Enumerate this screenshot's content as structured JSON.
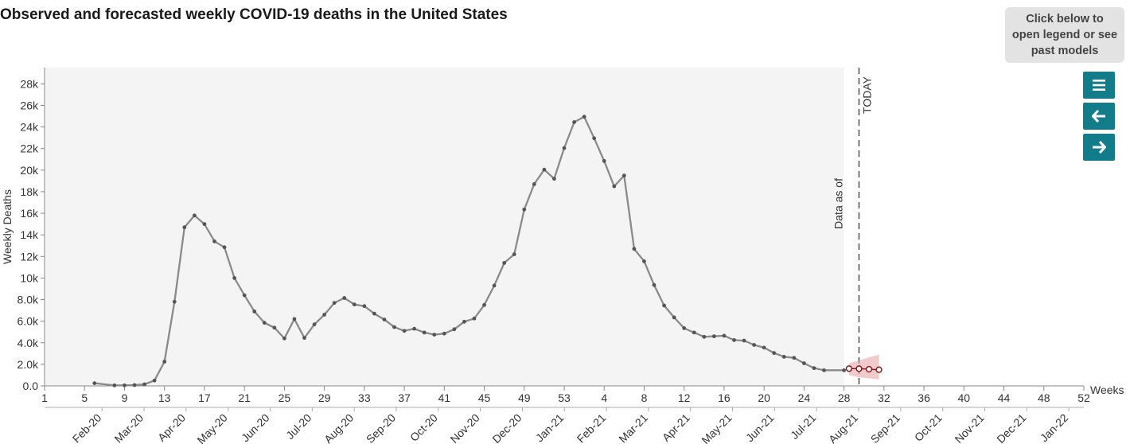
{
  "header": {
    "title": "Observed and forecasted weekly COVID-19 deaths in the United States",
    "legend_button_label": "Click below to open legend or see past models"
  },
  "toolbar": {
    "buttons": [
      {
        "name": "menu",
        "icon": "menu-icon"
      },
      {
        "name": "back",
        "icon": "arrow-left-icon"
      },
      {
        "name": "forward",
        "icon": "arrow-right-icon"
      }
    ],
    "accent_color": "#137c8b"
  },
  "chart_data": {
    "type": "line",
    "title": "Observed and forecasted weekly COVID-19 deaths in the United States",
    "xlabel": "Weeks",
    "ylabel": "Weekly Deaths",
    "ylim": [
      0,
      29500
    ],
    "y_ticks": [
      0,
      2000,
      4000,
      6000,
      8000,
      10000,
      12000,
      14000,
      16000,
      18000,
      20000,
      22000,
      24000,
      26000,
      28000
    ],
    "y_tick_labels": [
      "0.0",
      "2.0k",
      "4.0k",
      "6.0k",
      "8.0k",
      "10k",
      "12k",
      "14k",
      "16k",
      "18k",
      "20k",
      "22k",
      "24k",
      "26k",
      "28k"
    ],
    "x_week_labels": [
      "1",
      "5",
      "9",
      "13",
      "17",
      "21",
      "25",
      "29",
      "33",
      "37",
      "41",
      "45",
      "49",
      "53",
      "4",
      "8",
      "12",
      "16",
      "20",
      "24",
      "28",
      "32",
      "36",
      "40",
      "44",
      "48",
      "52"
    ],
    "x_month_labels": [
      "Feb-20",
      "Mar-20",
      "Apr-20",
      "May-20",
      "Jun-20",
      "Jul-20",
      "Aug-20",
      "Sep-20",
      "Oct-20",
      "Nov-20",
      "Dec-20",
      "Jan-21",
      "Feb-21",
      "Mar-21",
      "Apr-21",
      "May-21",
      "Jun-21",
      "Jul-21",
      "Aug-21",
      "Sep-21",
      "Oct-21",
      "Nov-21",
      "Dec-21",
      "Jan-22"
    ],
    "observed_region_end_week": 81,
    "today_week": 82.5,
    "today_label": "TODAY",
    "data_as_of_label": "Data as of",
    "grid": false,
    "series": [
      {
        "role": "observed",
        "color": "#8a8a8a",
        "x": [
          6,
          8,
          9,
          10,
          11,
          12,
          13,
          14,
          15,
          16,
          17,
          18,
          19,
          20,
          21,
          22,
          23,
          24,
          25,
          26,
          27,
          28,
          29,
          30,
          31,
          32,
          33,
          34,
          35,
          36,
          37,
          38,
          39,
          40,
          41,
          42,
          43,
          44,
          45,
          46,
          47,
          48,
          49,
          50,
          51,
          52,
          53,
          54,
          55,
          56,
          57,
          58,
          59,
          60,
          61,
          62,
          63,
          64,
          65,
          66,
          67,
          68,
          69,
          70,
          71,
          72,
          73,
          74,
          75,
          76,
          77,
          78,
          79,
          81
        ],
        "values": [
          250,
          50,
          50,
          80,
          150,
          500,
          2250,
          7800,
          14700,
          15800,
          15000,
          13400,
          12850,
          10000,
          8400,
          6900,
          5850,
          5400,
          4400,
          6200,
          4450,
          5700,
          6600,
          7700,
          8150,
          7550,
          7400,
          6700,
          6150,
          5450,
          5100,
          5300,
          4950,
          4750,
          4850,
          5250,
          5950,
          6250,
          7500,
          9300,
          11400,
          12200,
          16350,
          18700,
          20050,
          19200,
          22050,
          24450,
          24950,
          22950,
          20850,
          18500,
          19500,
          12700,
          11550,
          9350,
          7450,
          6350,
          5350,
          4950,
          4550,
          4600,
          4650,
          4250,
          4200,
          3800,
          3550,
          3050,
          2700,
          2600,
          2100,
          1650,
          1450,
          1450
        ]
      },
      {
        "role": "forecast",
        "color": "#8b1a1a",
        "x": [
          81.5,
          82.5,
          83.5,
          84.5
        ],
        "values": [
          1600,
          1600,
          1550,
          1500
        ],
        "interval_low": [
          1000,
          800,
          700,
          600
        ],
        "interval_high": [
          2100,
          2350,
          2650,
          2900
        ]
      }
    ]
  }
}
